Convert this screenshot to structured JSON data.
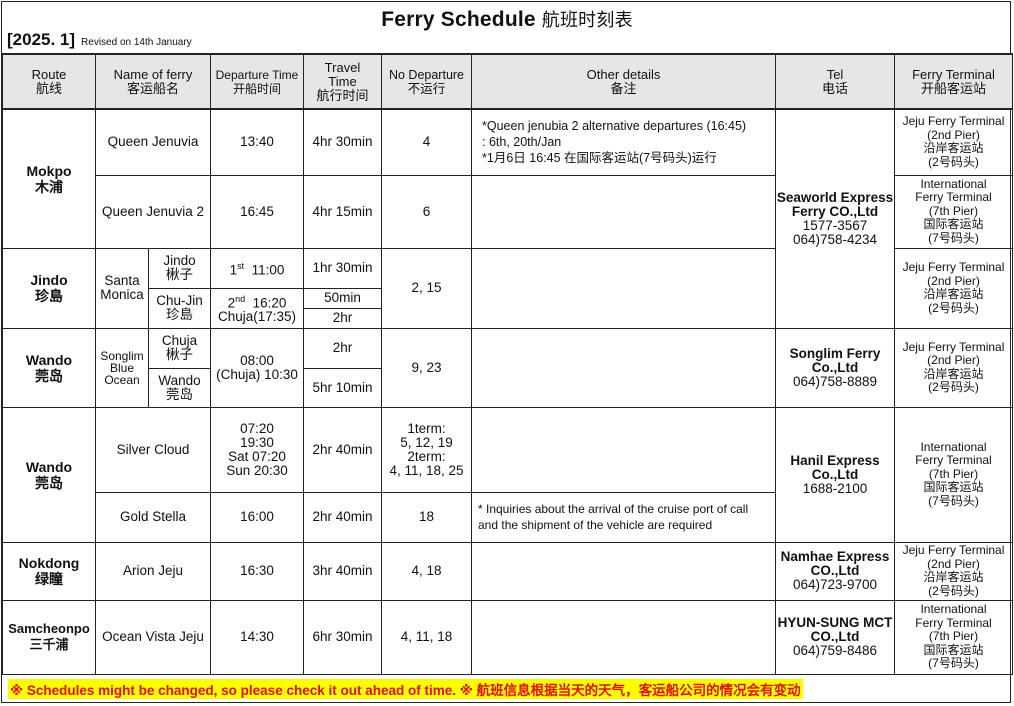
{
  "header": {
    "title": "Ferry Schedule",
    "title_cn": "航班时刻表",
    "issue": "[2025. 1]",
    "revised": "Revised on 14th January"
  },
  "columns": {
    "route": "Route\n航线",
    "ferry": "Name of ferry\n客运船名",
    "departure": "Departure Time\n开船时间",
    "travel": "Travel\nTime\n航行时间",
    "no_departure": "No Departure\n不运行",
    "other": "Other details\n备注",
    "tel": "Tel\n电话",
    "terminal": "Ferry Terminal\n开船客运站"
  },
  "terminals": {
    "coastal": "Jeju Ferry Terminal\n(2nd Pier)\n沿岸客运站\n(2号码头)",
    "international": "International\nFerry Terminal\n(7th Pier)\n国际客运站\n(7号码头)"
  },
  "rows": {
    "mokpo": {
      "route": "Mokpo\n木浦",
      "ferries": [
        {
          "name": "Queen Jenuvia",
          "departure": "13:40",
          "travel": "4hr 30min",
          "no_departure": "4",
          "other": "*Queen jenubia 2 alternative departures (16:45)\n  : 6th, 20th/Jan\n*1月6日  16:45 在国际客运站(7号码头)运行"
        },
        {
          "name": "Queen Jenuvia 2",
          "departure": "16:45",
          "travel": "4hr 15min",
          "no_departure": "6",
          "other": ""
        }
      ],
      "tel_company": "Seaworld Express\nFerry CO.,Ltd",
      "tel_numbers": "1577-3567\n064)758-4234"
    },
    "jindo": {
      "route": "Jindo\n珍島",
      "ferry": "Santa\nMonica",
      "legs": [
        {
          "name": "Jindo\n楸子",
          "ord": "1",
          "ord_suffix": "st",
          "departure": "11:00",
          "travel": "1hr 30min"
        },
        {
          "name": "Chu-Jin\n珍島",
          "ord": "2",
          "ord_suffix": "nd",
          "departure": "16:20",
          "departure_note": "Chuja(17:35)",
          "travel": [
            "50min",
            "2hr"
          ]
        }
      ],
      "no_departure": "2, 15"
    },
    "wando1": {
      "route": "Wando\n莞岛",
      "ferry": "Songlim\nBlue\nOcean",
      "legs": [
        {
          "name": "Chuja\n楸子",
          "travel": "2hr"
        },
        {
          "name": "Wando\n莞岛",
          "travel": "5hr 10min"
        }
      ],
      "departure": "08:00\n(Chuja) 10:30",
      "no_departure": "9, 23",
      "tel_company": "Songlim Ferry\nCo.,Ltd",
      "tel_numbers": "064)758-8889"
    },
    "wando2": {
      "route": "Wando\n莞岛",
      "ferries": [
        {
          "name": "Silver Cloud",
          "departure": "07:20\n19:30\nSat 07:20\nSun 20:30",
          "travel": "2hr 40min",
          "no_departure": "1term:\n5, 12, 19\n2term:\n4, 11, 18, 25",
          "other": ""
        },
        {
          "name": "Gold Stella",
          "departure": "16:00",
          "travel": "2hr 40min",
          "no_departure": "18",
          "other": "* Inquiries about the arrival of the cruise port of call\n  and the shipment of the vehicle are required"
        }
      ],
      "tel_company": "Hanil Express\nCo.,Ltd",
      "tel_numbers": "1688-2100"
    },
    "nokdong": {
      "route": "Nokdong\n绿瞳",
      "name": "Arion Jeju",
      "departure": "16:30",
      "travel": "3hr 40min",
      "no_departure": "4, 18",
      "tel_company": "Namhae Express\nCO.,Ltd",
      "tel_numbers": "064)723-9700"
    },
    "samcheonpo": {
      "route": "Samcheonpo\n三千浦",
      "name": "Ocean Vista Jeju",
      "departure": "14:30",
      "travel": "6hr 30min",
      "no_departure": "4, 11, 18",
      "tel_company": "HYUN-SUNG MCT\nCO.,Ltd",
      "tel_numbers": "064)759-8486"
    }
  },
  "footer": {
    "notice": "※ Schedules might be changed, so please check it out ahead of time.   ※ 航班信息根据当天的天气，客运船公司的情况会有变动",
    "highlight_color": "#ffff00",
    "text_color": "#e01010"
  }
}
